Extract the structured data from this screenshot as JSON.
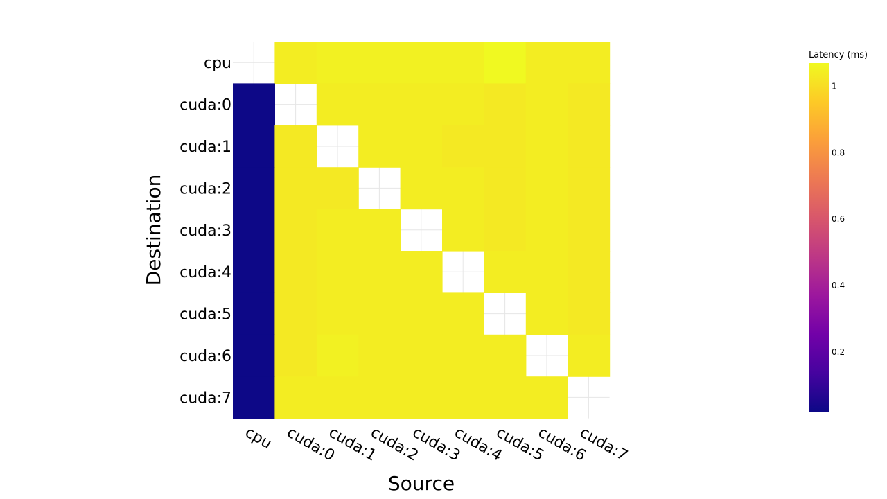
{
  "chart_data": {
    "type": "heatmap",
    "xlabel": "Source",
    "ylabel": "Destination",
    "x_categories": [
      "cpu",
      "cuda:0",
      "cuda:1",
      "cuda:2",
      "cuda:3",
      "cuda:4",
      "cuda:5",
      "cuda:6",
      "cuda:7"
    ],
    "y_categories": [
      "cpu",
      "cuda:0",
      "cuda:1",
      "cuda:2",
      "cuda:3",
      "cuda:4",
      "cuda:5",
      "cuda:6",
      "cuda:7"
    ],
    "values": [
      [
        null,
        1.04,
        1.05,
        1.05,
        1.05,
        1.05,
        1.07,
        1.04,
        1.04
      ],
      [
        0.02,
        null,
        1.04,
        1.04,
        1.04,
        1.04,
        1.03,
        1.04,
        1.03
      ],
      [
        0.02,
        1.03,
        null,
        1.04,
        1.04,
        1.03,
        1.03,
        1.04,
        1.03
      ],
      [
        0.02,
        1.03,
        1.03,
        null,
        1.04,
        1.04,
        1.03,
        1.04,
        1.03
      ],
      [
        0.02,
        1.03,
        1.04,
        1.04,
        null,
        1.04,
        1.03,
        1.04,
        1.03
      ],
      [
        0.02,
        1.03,
        1.04,
        1.04,
        1.04,
        null,
        1.04,
        1.04,
        1.03
      ],
      [
        0.02,
        1.03,
        1.04,
        1.04,
        1.04,
        1.04,
        null,
        1.04,
        1.03
      ],
      [
        0.02,
        1.03,
        1.05,
        1.04,
        1.04,
        1.04,
        1.04,
        null,
        1.04
      ],
      [
        0.02,
        1.04,
        1.04,
        1.04,
        1.04,
        1.04,
        1.04,
        1.04,
        null
      ]
    ],
    "colorbar": {
      "title": "Latency (ms)",
      "tick_values": [
        0.2,
        0.4,
        0.6,
        0.8,
        1
      ],
      "tick_labels": [
        "0.2",
        "0.4",
        "0.6",
        "0.8",
        "1"
      ],
      "range": [
        0.02,
        1.07
      ],
      "colorscale": "plasma"
    },
    "grid": true,
    "legend": "colorbar-right"
  }
}
